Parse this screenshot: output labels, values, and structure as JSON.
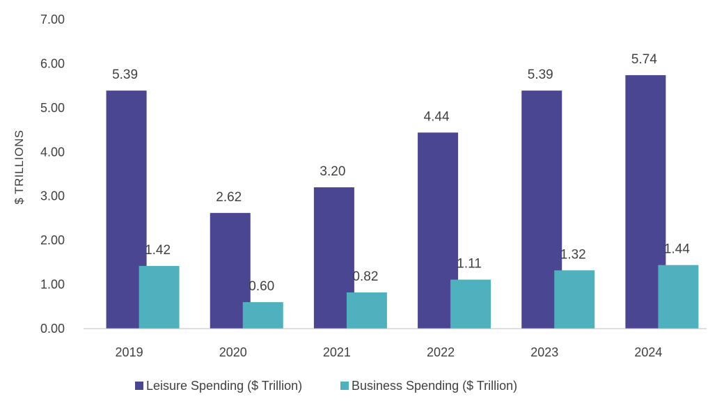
{
  "chart_data": {
    "type": "bar",
    "title": "",
    "xlabel": "",
    "ylabel": "$ TRILLIONS",
    "ylim": [
      0,
      7
    ],
    "yticks": [
      "0.00",
      "1.00",
      "2.00",
      "3.00",
      "4.00",
      "5.00",
      "6.00",
      "7.00"
    ],
    "categories": [
      "2019",
      "2020",
      "2021",
      "2022",
      "2023",
      "2024"
    ],
    "series": [
      {
        "name": "Leisure Spending ($ Trillion)",
        "color": "#4a4691",
        "values": [
          5.39,
          2.62,
          3.2,
          4.44,
          5.39,
          5.74
        ],
        "labels": [
          "5.39",
          "2.62",
          "3.20",
          "4.44",
          "5.39",
          "5.74"
        ]
      },
      {
        "name": "Business Spending ($ Trillion)",
        "color": "#4eb1bd",
        "values": [
          1.42,
          0.6,
          0.82,
          1.11,
          1.32,
          1.44
        ],
        "labels": [
          "1.42",
          "0.60",
          "0.82",
          "1.11",
          "1.32",
          "1.44"
        ]
      }
    ],
    "grid": false,
    "legend": "bottom"
  }
}
